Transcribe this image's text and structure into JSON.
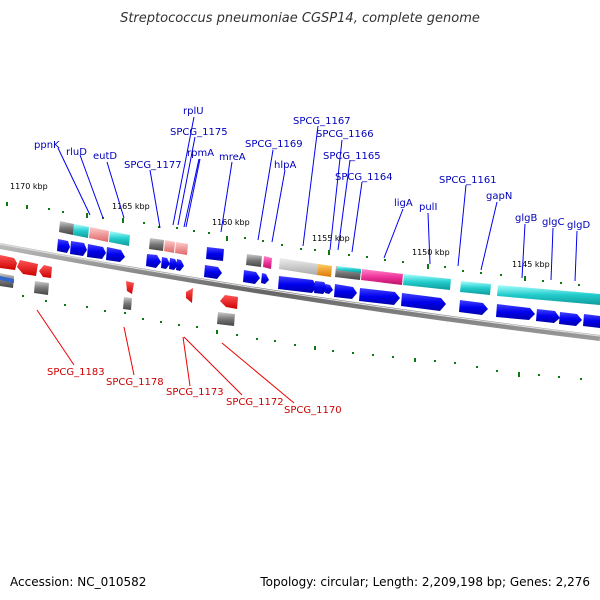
{
  "title": "Streptococcus pneumoniae CGSP14, complete genome",
  "footer": {
    "accession": "Accession: NC_010582",
    "summary": "Topology: circular; Length: 2,209,198 bp; Genes: 2,276"
  },
  "ticks": [
    "1170 kbp",
    "1165 kbp",
    "1160 kbp",
    "1155 kbp",
    "1150 kbp",
    "1145 kbp"
  ],
  "forward_labels": [
    "ppnK",
    "rluD",
    "eutD",
    "SPCG_1177",
    "rplU",
    "SPCG_1175",
    "rpmA",
    "mreA",
    "SPCG_1169",
    "hlpA",
    "SPCG_1167",
    "SPCG_1166",
    "SPCG_1165",
    "SPCG_1164",
    "ligA",
    "pulI",
    "SPCG_1161",
    "gapN",
    "glgB",
    "glgC",
    "glgD"
  ],
  "reverse_labels": [
    "SPCG_1183",
    "SPCG_1178",
    "SPCG_1173",
    "SPCG_1172",
    "SPCG_1170"
  ],
  "colors": {
    "forward": "#0000ee",
    "reverse": "#ee0000",
    "backbone": "#808080",
    "tick": "#117711",
    "cyan": "#22cccc",
    "pink": "#ee3399",
    "salmon": "#ee8888",
    "orange": "#ee8811",
    "grey": "#777777"
  }
}
